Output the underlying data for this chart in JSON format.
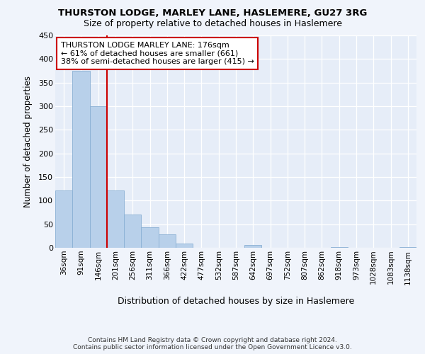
{
  "title1": "THURSTON LODGE, MARLEY LANE, HASLEMERE, GU27 3RG",
  "title2": "Size of property relative to detached houses in Haslemere",
  "xlabel": "Distribution of detached houses by size in Haslemere",
  "ylabel": "Number of detached properties",
  "bar_labels": [
    "36sqm",
    "91sqm",
    "146sqm",
    "201sqm",
    "256sqm",
    "311sqm",
    "366sqm",
    "422sqm",
    "477sqm",
    "532sqm",
    "587sqm",
    "642sqm",
    "697sqm",
    "752sqm",
    "807sqm",
    "862sqm",
    "918sqm",
    "973sqm",
    "1028sqm",
    "1083sqm",
    "1138sqm"
  ],
  "bar_values": [
    122,
    375,
    300,
    122,
    70,
    43,
    28,
    9,
    0,
    0,
    0,
    6,
    0,
    0,
    0,
    0,
    1,
    0,
    0,
    0,
    2
  ],
  "bar_color": "#b8d0ea",
  "bar_edge_color": "#8ab0d4",
  "vline_color": "#cc0000",
  "annotation_text": "THURSTON LODGE MARLEY LANE: 176sqm\n← 61% of detached houses are smaller (661)\n38% of semi-detached houses are larger (415) →",
  "annotation_box_color": "#ffffff",
  "annotation_box_edge": "#cc0000",
  "ylim": [
    0,
    450
  ],
  "yticks": [
    0,
    50,
    100,
    150,
    200,
    250,
    300,
    350,
    400,
    450
  ],
  "footer": "Contains HM Land Registry data © Crown copyright and database right 2024.\nContains public sector information licensed under the Open Government Licence v3.0.",
  "bg_color": "#f0f4fb",
  "plot_bg_color": "#e6edf8"
}
